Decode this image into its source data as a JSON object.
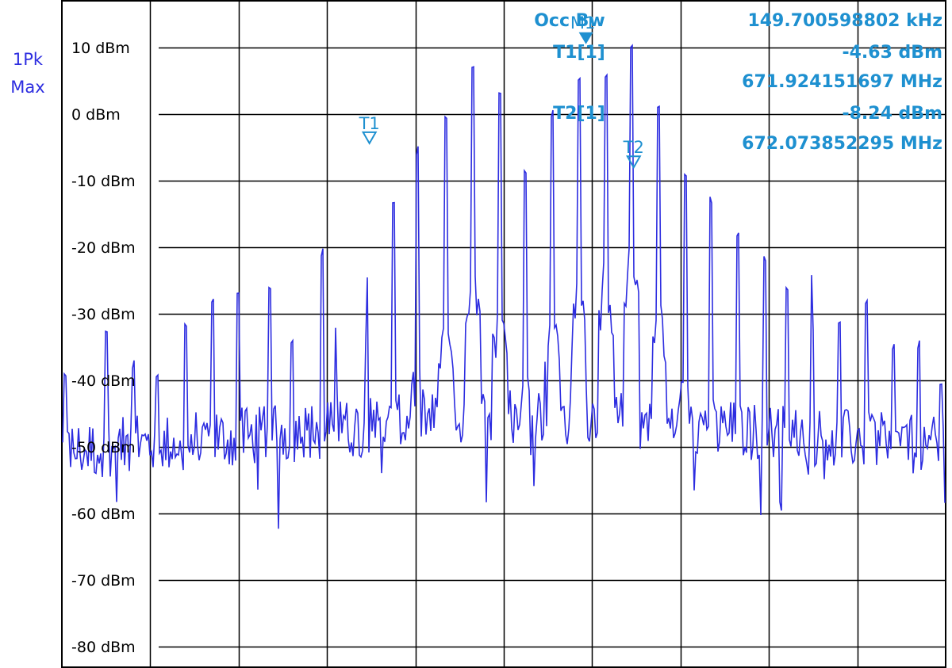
{
  "detector": {
    "line1": "1Pk",
    "line2": "Max"
  },
  "readout": {
    "occ_label": "Occ Bw",
    "occ_value": "149.700598802 kHz",
    "t1_label": "T1[1]",
    "t1_level": "-4.63 dBm",
    "t1_freq": "671.924151697 MHz",
    "t2_label": "T2[1]",
    "t2_level": "-8.24 dBm",
    "t2_freq": "672.073852295 MHz"
  },
  "colors": {
    "trace": "#2d2de0",
    "marker": "#1e90d0",
    "grid": "#000000"
  },
  "chart_data": {
    "type": "line",
    "title": "",
    "xlabel": "",
    "ylabel": "",
    "ylim": [
      -85,
      15
    ],
    "xlim": [
      0,
      10
    ],
    "grid": true,
    "y_ticks": [
      10,
      0,
      -10,
      -20,
      -30,
      -40,
      -50,
      -60,
      -70,
      -80
    ],
    "y_tick_labels": [
      "10 dBm",
      "0 dBm",
      "-10 dBm",
      "-20 dBm",
      "-30 dBm",
      "-40 dBm",
      "-50 dBm",
      "-60 dBm",
      "-70 dBm",
      "-80 dBm"
    ],
    "noise_floor_dbm": -57,
    "series": [
      {
        "name": "",
        "peaks": [
          {
            "x": 0.04,
            "y": -38
          },
          {
            "x": 0.5,
            "y": -32
          },
          {
            "x": 0.8,
            "y": -37
          },
          {
            "x": 1.08,
            "y": -39
          },
          {
            "x": 1.4,
            "y": -31
          },
          {
            "x": 1.7,
            "y": -27
          },
          {
            "x": 2.0,
            "y": -26
          },
          {
            "x": 2.35,
            "y": -26
          },
          {
            "x": 2.6,
            "y": -33
          },
          {
            "x": 2.95,
            "y": -20
          },
          {
            "x": 3.1,
            "y": -32
          },
          {
            "x": 3.45,
            "y": -24
          },
          {
            "x": 3.75,
            "y": -12
          },
          {
            "x": 4.02,
            "y": -4.6
          },
          {
            "x": 4.35,
            "y": 0
          },
          {
            "x": 4.65,
            "y": 8
          },
          {
            "x": 4.95,
            "y": 4
          },
          {
            "x": 5.25,
            "y": -8
          },
          {
            "x": 5.55,
            "y": 1
          },
          {
            "x": 5.85,
            "y": 6
          },
          {
            "x": 6.15,
            "y": 7
          },
          {
            "x": 6.45,
            "y": 11
          },
          {
            "x": 6.75,
            "y": 2
          },
          {
            "x": 7.05,
            "y": -8
          },
          {
            "x": 7.35,
            "y": -12
          },
          {
            "x": 7.65,
            "y": -17
          },
          {
            "x": 7.95,
            "y": -21
          },
          {
            "x": 8.2,
            "y": -25
          },
          {
            "x": 8.5,
            "y": -23
          },
          {
            "x": 8.8,
            "y": -30
          },
          {
            "x": 9.1,
            "y": -27
          },
          {
            "x": 9.4,
            "y": -34
          },
          {
            "x": 9.7,
            "y": -34
          },
          {
            "x": 9.95,
            "y": -40
          }
        ]
      }
    ],
    "markers": [
      {
        "label": "T1",
        "x": 3.48,
        "y": -4.63
      },
      {
        "label": "T2",
        "x": 6.47,
        "y": -8.24
      },
      {
        "label": "M1",
        "x": 5.93,
        "y": 10.5
      }
    ]
  }
}
